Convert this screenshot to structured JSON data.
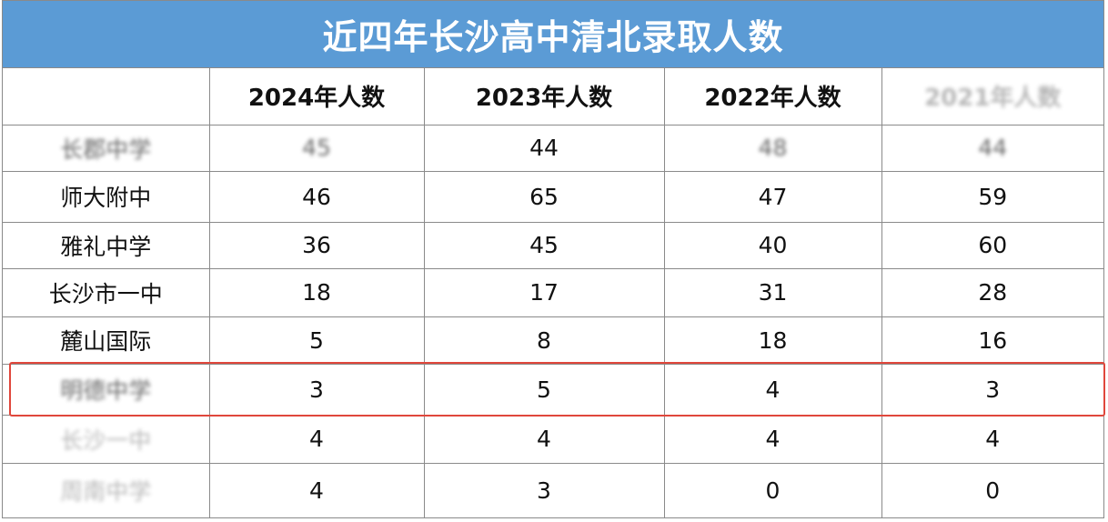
{
  "title": "近四年长沙高中清北录取人数",
  "headers": [
    "",
    "2024年人数",
    "2023年人数",
    "2022年人数",
    "2021年人数"
  ],
  "rows": [
    {
      "school": "长郡中学",
      "values": [
        "45",
        "44",
        "48",
        "44"
      ],
      "blurred_cells": [
        0,
        1,
        3,
        4
      ]
    },
    {
      "school": "师大附中",
      "values": [
        "46",
        "65",
        "47",
        "59"
      ],
      "blurred_cells": []
    },
    {
      "school": "雅礼中学",
      "values": [
        "36",
        "45",
        "40",
        "60"
      ],
      "blurred_cells": []
    },
    {
      "school": "长沙市一中",
      "values": [
        "18",
        "17",
        "31",
        "28"
      ],
      "blurred_cells": []
    },
    {
      "school": "麓山国际",
      "values": [
        "5",
        "8",
        "18",
        "16"
      ],
      "blurred_cells": []
    },
    {
      "school": "明德中学",
      "values": [
        "3",
        "5",
        "4",
        "3"
      ],
      "blurred_cells": [
        0
      ],
      "highlighted": true
    },
    {
      "school": "长沙一中",
      "values": [
        "4",
        "4",
        "4",
        "4"
      ],
      "blurred_cells": [
        0
      ]
    },
    {
      "school": "周南中学",
      "values": [
        "4",
        "3",
        "0",
        "0"
      ],
      "blurred_cells": [
        0
      ]
    }
  ],
  "colors": {
    "title_bg": "#5b9bd5",
    "highlight_border": "#e0473c",
    "grid": "#8a8a8a"
  }
}
